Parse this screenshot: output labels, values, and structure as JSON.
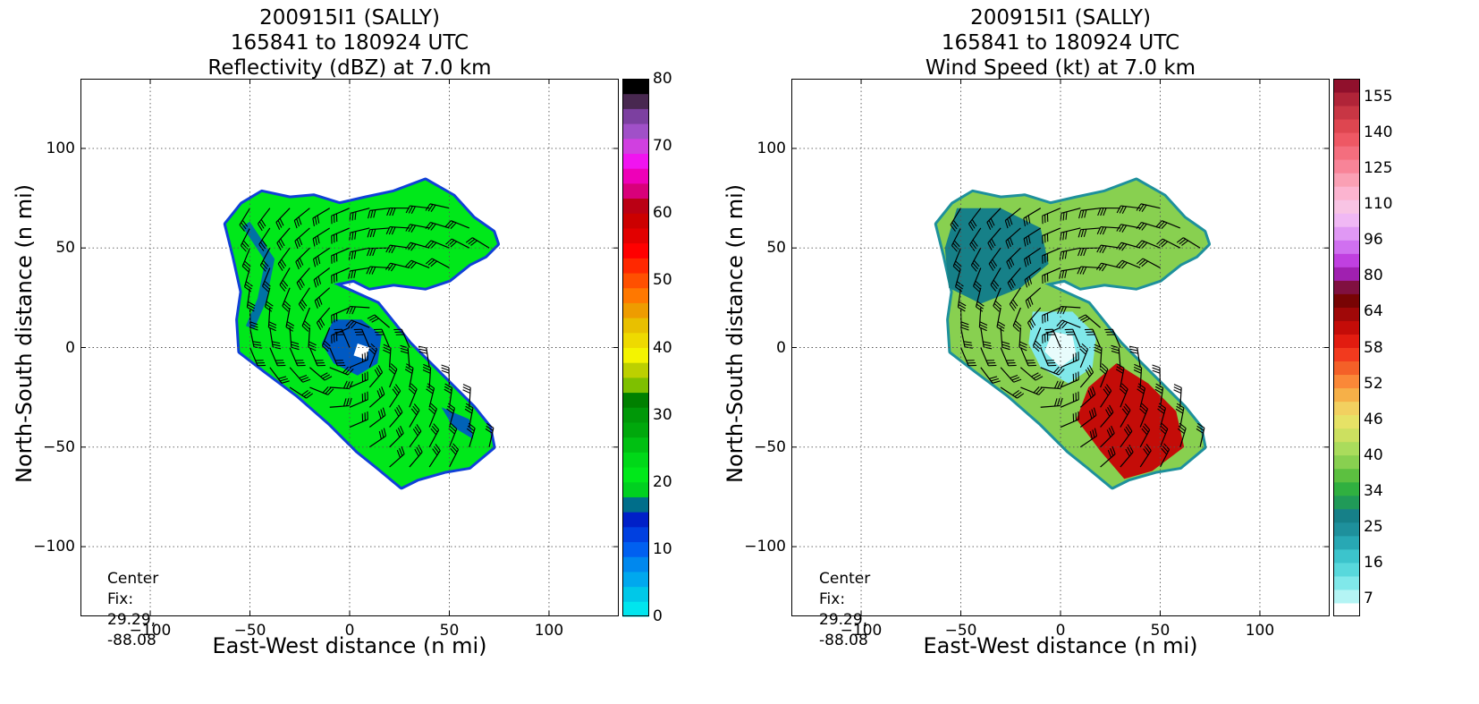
{
  "chart_data": [
    {
      "type": "heatmap",
      "title_lines": [
        "200915I1 (SALLY)",
        "165841 to 180924 UTC",
        "Reflectivity (dBZ) at 7.0 km"
      ],
      "xlabel": "East-West distance (n mi)",
      "ylabel": "North-South distance (n mi)",
      "xlim": [
        -135,
        135
      ],
      "ylim": [
        -135,
        135
      ],
      "xticks": [
        -100,
        -50,
        0,
        50,
        100
      ],
      "yticks": [
        -100,
        -50,
        0,
        50,
        100
      ],
      "xtick_labels": [
        "−100",
        "−50",
        "0",
        "50",
        "100"
      ],
      "ytick_labels": [
        "−100",
        "−50",
        "0",
        "50",
        "100"
      ],
      "grid": true,
      "center_fix_label": "Center Fix:",
      "center_fix_value": "29.29, -88.08",
      "colorbar": {
        "min": 0,
        "max": 80,
        "tick_values": [
          0,
          10,
          20,
          30,
          40,
          50,
          60,
          70,
          80
        ],
        "colors": [
          "#00e5ee",
          "#00c8e8",
          "#00a8ee",
          "#0088ee",
          "#0060f0",
          "#0040e0",
          "#0020c8",
          "#006e8a",
          "#00d020",
          "#00e81a",
          "#00d818",
          "#00c012",
          "#00a80c",
          "#009808",
          "#008000",
          "#7ec000",
          "#bcd000",
          "#f4f400",
          "#eeda00",
          "#e8c000",
          "#ee9c00",
          "#ff7800",
          "#ff5000",
          "#ff2800",
          "#ff0000",
          "#e20000",
          "#cc0000",
          "#ba0014",
          "#d8007a",
          "#ee00b8",
          "#f014f0",
          "#d040e0",
          "#a050c8",
          "#7c40a0",
          "#482850",
          "#000000"
        ]
      },
      "echo_level_dbz": 22,
      "eye_level_dbz": 12
    },
    {
      "type": "heatmap",
      "title_lines": [
        "200915I1 (SALLY)",
        "165841 to 180924 UTC",
        "Wind Speed (kt) at 7.0 km"
      ],
      "xlabel": "East-West distance (n mi)",
      "ylabel": "North-South distance (n mi)",
      "xlim": [
        -135,
        135
      ],
      "ylim": [
        -135,
        135
      ],
      "xticks": [
        -100,
        -50,
        0,
        50,
        100
      ],
      "yticks": [
        -100,
        -50,
        0,
        50,
        100
      ],
      "xtick_labels": [
        "−100",
        "−50",
        "0",
        "50",
        "100"
      ],
      "ytick_labels": [
        "−100",
        "−50",
        "0",
        "50",
        "100"
      ],
      "grid": true,
      "center_fix_label": "Center Fix:",
      "center_fix_value": "29.29, -88.08",
      "colorbar": {
        "tick_labels": [
          "7",
          "16",
          "25",
          "34",
          "40",
          "46",
          "52",
          "58",
          "64",
          "80",
          "96",
          "110",
          "125",
          "140",
          "155"
        ],
        "colors": [
          "#ffffff",
          "#b4f4f4",
          "#80e8ea",
          "#58d8dc",
          "#3cc4cc",
          "#28a8b4",
          "#1e909c",
          "#168088",
          "#209a58",
          "#30b040",
          "#5cc040",
          "#88d050",
          "#aadc5c",
          "#cce060",
          "#e6e266",
          "#f2d060",
          "#f6b048",
          "#fa8838",
          "#f46028",
          "#f23a1e",
          "#e21c10",
          "#c40c08",
          "#a00808",
          "#780404",
          "#801040",
          "#a020b0",
          "#c040e0",
          "#d070f0",
          "#e098f4",
          "#f0b8f4",
          "#f8c4e4",
          "#fcb4d0",
          "#faa0b4",
          "#f88498",
          "#f46e7e",
          "#ee5864",
          "#de4650",
          "#c83644",
          "#b02438",
          "#90102c"
        ]
      },
      "eye_speed_kt": 20,
      "rainband_speed_kt": 38,
      "core_speed_kt": 55
    }
  ]
}
